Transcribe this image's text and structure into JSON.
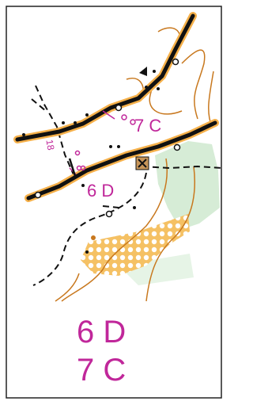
{
  "map": {
    "labels": [
      "7 C",
      "6 D",
      "18"
    ],
    "legend": [
      "6 D",
      "7 C"
    ]
  }
}
